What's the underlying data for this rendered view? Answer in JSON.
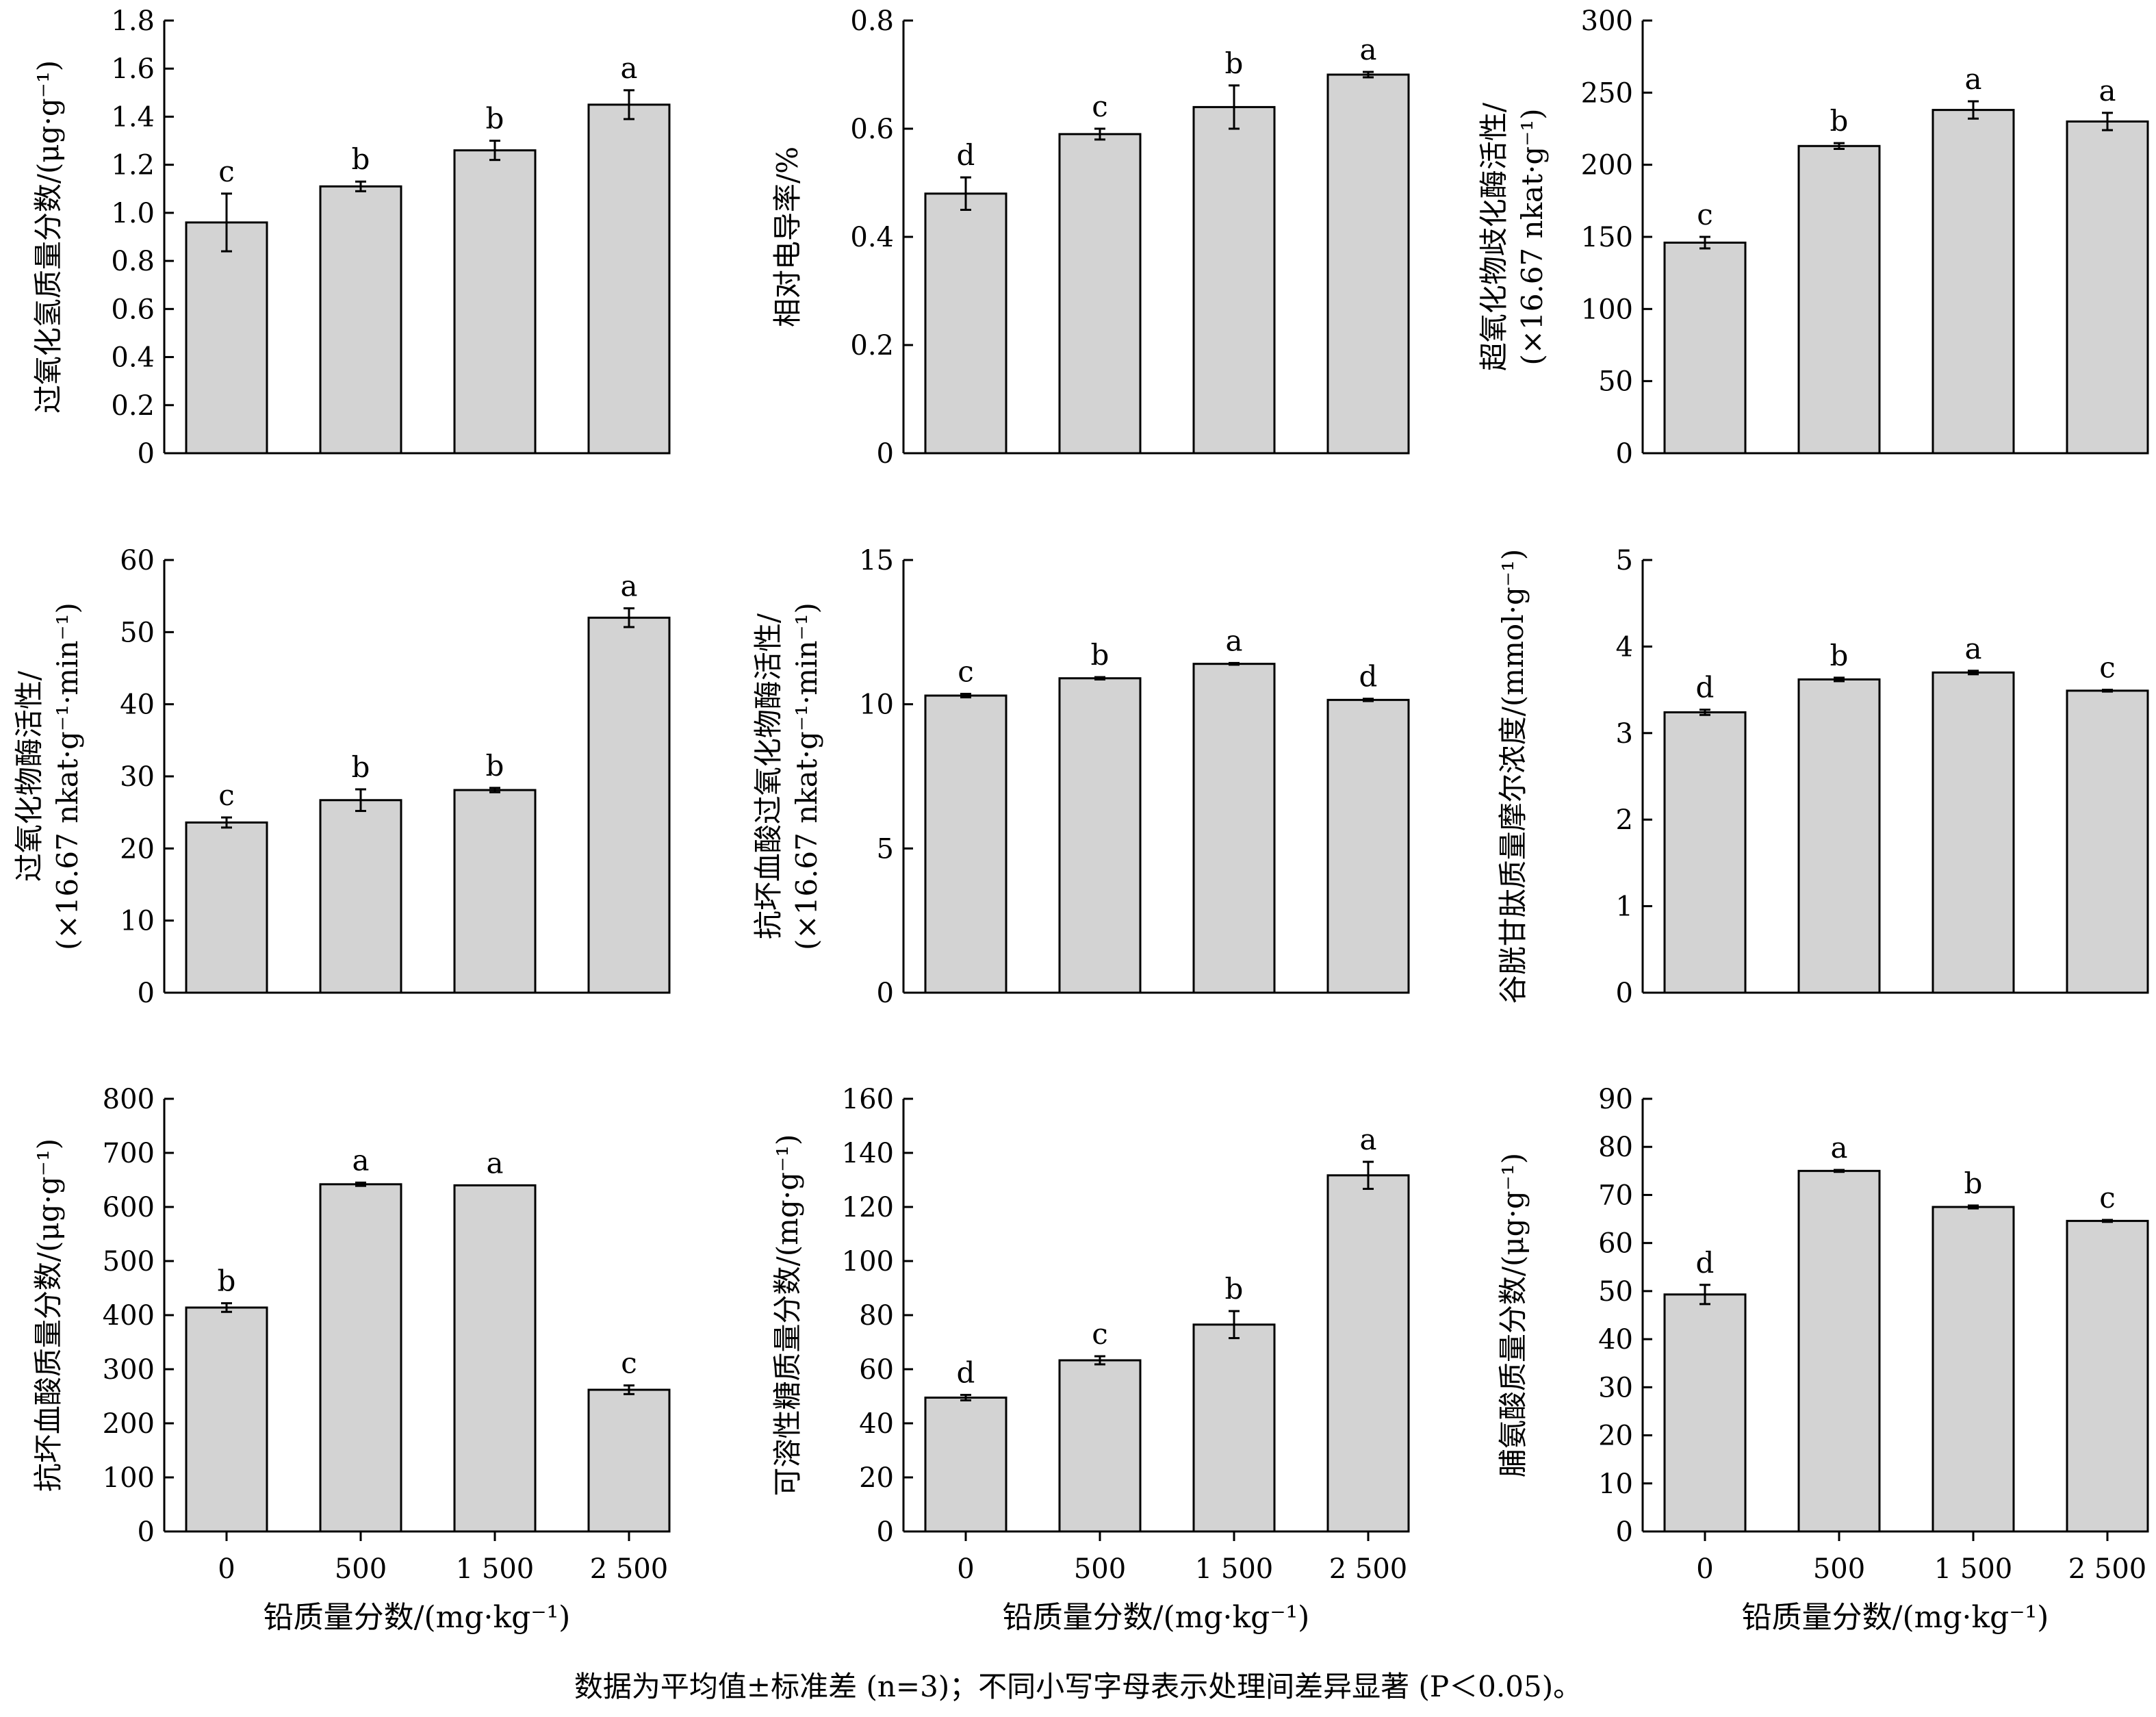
{
  "figure_note": "数据为平均值±标准差 (n=3)；不同小写字母表示处理间差异显著 (P＜0.05)。",
  "shared_xlabel": "铅质量分数/(mg·kg⁻¹)",
  "chart_data": [
    {
      "type": "bar",
      "title": "",
      "ylabel_lines": [
        "过氧化氢质量分数/(μg·g⁻¹)"
      ],
      "xlabel": "",
      "categories": [
        "0",
        "500",
        "1 500",
        "2 500"
      ],
      "values": [
        0.96,
        1.11,
        1.26,
        1.45
      ],
      "errors": [
        0.12,
        0.02,
        0.04,
        0.06
      ],
      "letters": [
        "c",
        "b",
        "b",
        "a"
      ],
      "ylim": [
        0,
        1.8
      ],
      "yticks": [
        0,
        0.2,
        0.4,
        0.6,
        0.8,
        1.0,
        1.2,
        1.4,
        1.6,
        1.8
      ],
      "ytick_labels": [
        "0",
        "0.2",
        "0.4",
        "0.6",
        "0.8",
        "1.0",
        "1.2",
        "1.4",
        "1.6",
        "1.8"
      ],
      "show_xtick_labels": false
    },
    {
      "type": "bar",
      "title": "",
      "ylabel_lines": [
        "相对电导率/%"
      ],
      "xlabel": "",
      "categories": [
        "0",
        "500",
        "1 500",
        "2 500"
      ],
      "values": [
        0.48,
        0.59,
        0.64,
        0.7
      ],
      "errors": [
        0.03,
        0.01,
        0.04,
        0.005
      ],
      "letters": [
        "d",
        "c",
        "b",
        "a"
      ],
      "ylim": [
        0,
        0.8
      ],
      "yticks": [
        0,
        0.2,
        0.4,
        0.6,
        0.8
      ],
      "ytick_labels": [
        "0",
        "0.2",
        "0.4",
        "0.6",
        "0.8"
      ],
      "show_xtick_labels": false
    },
    {
      "type": "bar",
      "title": "",
      "ylabel_lines": [
        "超氧化物歧化酶活性/",
        "(×16.67 nkat·g⁻¹)"
      ],
      "xlabel": "",
      "categories": [
        "0",
        "500",
        "1 500",
        "2 500"
      ],
      "values": [
        146,
        213,
        238,
        230
      ],
      "errors": [
        4,
        2,
        6,
        6
      ],
      "letters": [
        "c",
        "b",
        "a",
        "a"
      ],
      "ylim": [
        0,
        300
      ],
      "yticks": [
        0,
        50,
        100,
        150,
        200,
        250,
        300
      ],
      "ytick_labels": [
        "0",
        "50",
        "100",
        "150",
        "200",
        "250",
        "300"
      ],
      "show_xtick_labels": false
    },
    {
      "type": "bar",
      "title": "",
      "ylabel_lines": [
        "过氧化物酶活性/",
        "(×16.67 nkat·g⁻¹·min⁻¹)"
      ],
      "xlabel": "",
      "categories": [
        "0",
        "500",
        "1 500",
        "2 500"
      ],
      "values": [
        23.6,
        26.7,
        28.1,
        52.0
      ],
      "errors": [
        0.7,
        1.5,
        0.3,
        1.3
      ],
      "letters": [
        "c",
        "b",
        "b",
        "a"
      ],
      "ylim": [
        0,
        60
      ],
      "yticks": [
        0,
        10,
        20,
        30,
        40,
        50,
        60
      ],
      "ytick_labels": [
        "0",
        "10",
        "20",
        "30",
        "40",
        "50",
        "60"
      ],
      "show_xtick_labels": false
    },
    {
      "type": "bar",
      "title": "",
      "ylabel_lines": [
        "抗坏血酸过氧化物酶活性/",
        "(×16.67 nkat·g⁻¹·min⁻¹)"
      ],
      "xlabel": "",
      "categories": [
        "0",
        "500",
        "1 500",
        "2 500"
      ],
      "values": [
        10.3,
        10.9,
        11.4,
        10.15
      ],
      "errors": [
        0.06,
        0.04,
        0.03,
        0.04
      ],
      "letters": [
        "c",
        "b",
        "a",
        "d"
      ],
      "ylim": [
        0,
        15
      ],
      "yticks": [
        0,
        5,
        10,
        15
      ],
      "ytick_labels": [
        "0",
        "5",
        "10",
        "15"
      ],
      "show_xtick_labels": false
    },
    {
      "type": "bar",
      "title": "",
      "ylabel_lines": [
        "谷胱甘肽质量摩尔浓度/(mmol·g⁻¹)"
      ],
      "xlabel": "",
      "categories": [
        "0",
        "500",
        "1 500",
        "2 500"
      ],
      "values": [
        3.24,
        3.62,
        3.7,
        3.49
      ],
      "errors": [
        0.03,
        0.02,
        0.02,
        0.01
      ],
      "letters": [
        "d",
        "b",
        "a",
        "c"
      ],
      "ylim": [
        0,
        5
      ],
      "yticks": [
        0,
        1,
        2,
        3,
        4,
        5
      ],
      "ytick_labels": [
        "0",
        "1",
        "2",
        "3",
        "4",
        "5"
      ],
      "show_xtick_labels": false
    },
    {
      "type": "bar",
      "title": "",
      "ylabel_lines": [
        "抗坏血酸质量分数/(μg·g⁻¹)"
      ],
      "xlabel": "铅质量分数/(mg·kg⁻¹)",
      "categories": [
        "0",
        "500",
        "1 500",
        "2 500"
      ],
      "values": [
        414,
        642,
        640,
        262
      ],
      "errors": [
        8,
        3,
        0,
        8
      ],
      "letters": [
        "b",
        "a",
        "a",
        "c"
      ],
      "ylim": [
        0,
        800
      ],
      "yticks": [
        0,
        100,
        200,
        300,
        400,
        500,
        600,
        700,
        800
      ],
      "ytick_labels": [
        "0",
        "100",
        "200",
        "300",
        "400",
        "500",
        "600",
        "700",
        "800"
      ],
      "show_xtick_labels": true
    },
    {
      "type": "bar",
      "title": "",
      "ylabel_lines": [
        "可溶性糖质量分数/(mg·g⁻¹)"
      ],
      "xlabel": "铅质量分数/(mg·kg⁻¹)",
      "categories": [
        "0",
        "500",
        "1 500",
        "2 500"
      ],
      "values": [
        49.5,
        63.3,
        76.5,
        131.7
      ],
      "errors": [
        1.0,
        1.5,
        5.0,
        5.0
      ],
      "letters": [
        "d",
        "c",
        "b",
        "a"
      ],
      "ylim": [
        0,
        160
      ],
      "yticks": [
        0,
        20,
        40,
        60,
        80,
        100,
        120,
        140,
        160
      ],
      "ytick_labels": [
        "0",
        "20",
        "40",
        "60",
        "80",
        "100",
        "120",
        "140",
        "160"
      ],
      "show_xtick_labels": true
    },
    {
      "type": "bar",
      "title": "",
      "ylabel_lines": [
        "脯氨酸质量分数/(μg·g⁻¹)"
      ],
      "xlabel": "铅质量分数/(mg·kg⁻¹)",
      "categories": [
        "0",
        "500",
        "1 500",
        "2 500"
      ],
      "values": [
        49.3,
        75.0,
        67.5,
        64.6
      ],
      "errors": [
        2.0,
        0.2,
        0.3,
        0.2
      ],
      "letters": [
        "d",
        "a",
        "b",
        "c"
      ],
      "ylim": [
        0,
        90
      ],
      "yticks": [
        0,
        10,
        20,
        30,
        40,
        50,
        60,
        70,
        80,
        90
      ],
      "ytick_labels": [
        "0",
        "10",
        "20",
        "30",
        "40",
        "50",
        "60",
        "70",
        "80",
        "90"
      ],
      "show_xtick_labels": true
    }
  ]
}
